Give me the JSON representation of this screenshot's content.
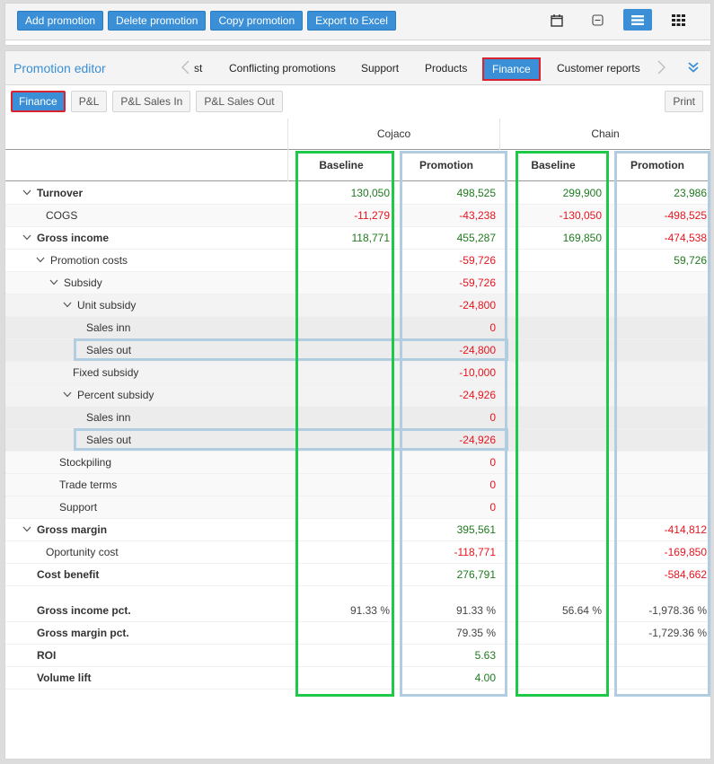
{
  "toolbar": {
    "buttons": [
      "Add promotion",
      "Delete promotion",
      "Copy promotion",
      "Export to Excel"
    ],
    "icons": [
      "calendar-icon",
      "collapse-box-icon",
      "list-view-icon",
      "grid-view-icon"
    ],
    "active_view": "list-view-icon"
  },
  "panel": {
    "title": "Promotion editor",
    "tabs": [
      {
        "label": "st",
        "active": false
      },
      {
        "label": "Conflicting promotions",
        "active": false
      },
      {
        "label": "Support",
        "active": false
      },
      {
        "label": "Products",
        "active": false
      },
      {
        "label": "Finance",
        "active": true
      },
      {
        "label": "Customer reports",
        "active": false
      }
    ],
    "subtabs": [
      {
        "label": "Finance",
        "active": true
      },
      {
        "label": "P&L",
        "active": false
      },
      {
        "label": "P&L Sales In",
        "active": false
      },
      {
        "label": "P&L Sales Out",
        "active": false
      }
    ],
    "print_label": "Print"
  },
  "table": {
    "groups": [
      "Cojaco",
      "Chain"
    ],
    "columns": [
      "Baseline",
      "Promotion",
      "Baseline",
      "Promotion"
    ],
    "rows": [
      {
        "label": "Turnover",
        "level": 0,
        "bold": true,
        "expand": true,
        "bg": 0,
        "values": [
          "130,050",
          "498,525",
          "299,900",
          "23,986"
        ],
        "signs": [
          "pos",
          "pos",
          "pos",
          "pos"
        ]
      },
      {
        "label": "COGS",
        "level": 1,
        "bold": false,
        "expand": false,
        "bg": 1,
        "values": [
          "-11,279",
          "-43,238",
          "-130,050",
          "-498,525"
        ],
        "signs": [
          "neg",
          "neg",
          "neg",
          "neg"
        ]
      },
      {
        "label": "Gross income",
        "level": 0,
        "bold": true,
        "expand": true,
        "bg": 0,
        "values": [
          "118,771",
          "455,287",
          "169,850",
          "-474,538"
        ],
        "signs": [
          "pos",
          "pos",
          "pos",
          "neg"
        ]
      },
      {
        "label": "Promotion costs",
        "level": 1,
        "bold": false,
        "expand": true,
        "bg": 0,
        "values": [
          "",
          "-59,726",
          "",
          "59,726"
        ],
        "signs": [
          "",
          "neg",
          "",
          "pos"
        ]
      },
      {
        "label": "Subsidy",
        "level": 2,
        "bold": false,
        "expand": true,
        "bg": 1,
        "values": [
          "",
          "-59,726",
          "",
          ""
        ],
        "signs": [
          "",
          "neg",
          "",
          ""
        ]
      },
      {
        "label": "Unit subsidy",
        "level": 3,
        "bold": false,
        "expand": true,
        "bg": 2,
        "values": [
          "",
          "-24,800",
          "",
          ""
        ],
        "signs": [
          "",
          "neg",
          "",
          ""
        ]
      },
      {
        "label": "Sales inn",
        "level": 4,
        "bold": false,
        "expand": false,
        "bg": 3,
        "values": [
          "",
          "0",
          "",
          ""
        ],
        "signs": [
          "",
          "neg",
          "",
          ""
        ]
      },
      {
        "label": "Sales out",
        "level": 4,
        "bold": false,
        "expand": false,
        "bg": 3,
        "highlight": true,
        "values": [
          "",
          "-24,800",
          "",
          ""
        ],
        "signs": [
          "",
          "neg",
          "",
          ""
        ]
      },
      {
        "label": "Fixed subsidy",
        "level": 3,
        "bold": false,
        "expand": false,
        "bg": 2,
        "values": [
          "",
          "-10,000",
          "",
          ""
        ],
        "signs": [
          "",
          "neg",
          "",
          ""
        ]
      },
      {
        "label": "Percent subsidy",
        "level": 3,
        "bold": false,
        "expand": true,
        "bg": 2,
        "values": [
          "",
          "-24,926",
          "",
          ""
        ],
        "signs": [
          "",
          "neg",
          "",
          ""
        ]
      },
      {
        "label": "Sales inn",
        "level": 4,
        "bold": false,
        "expand": false,
        "bg": 3,
        "values": [
          "",
          "0",
          "",
          ""
        ],
        "signs": [
          "",
          "neg",
          "",
          ""
        ]
      },
      {
        "label": "Sales out",
        "level": 4,
        "bold": false,
        "expand": false,
        "bg": 3,
        "highlight": true,
        "values": [
          "",
          "-24,926",
          "",
          ""
        ],
        "signs": [
          "",
          "neg",
          "",
          ""
        ]
      },
      {
        "label": "Stockpiling",
        "level": 2,
        "bold": false,
        "expand": false,
        "bg": 1,
        "values": [
          "",
          "0",
          "",
          ""
        ],
        "signs": [
          "",
          "neg",
          "",
          ""
        ]
      },
      {
        "label": "Trade terms",
        "level": 2,
        "bold": false,
        "expand": false,
        "bg": 1,
        "values": [
          "",
          "0",
          "",
          ""
        ],
        "signs": [
          "",
          "neg",
          "",
          ""
        ]
      },
      {
        "label": "Support",
        "level": 2,
        "bold": false,
        "expand": false,
        "bg": 1,
        "values": [
          "",
          "0",
          "",
          ""
        ],
        "signs": [
          "",
          "neg",
          "",
          ""
        ]
      },
      {
        "label": "Gross margin",
        "level": 0,
        "bold": true,
        "expand": true,
        "bg": 0,
        "values": [
          "",
          "395,561",
          "",
          "-414,812"
        ],
        "signs": [
          "",
          "pos",
          "",
          "neg"
        ]
      },
      {
        "label": "Oportunity cost",
        "level": 1,
        "bold": false,
        "expand": false,
        "bg": 0,
        "values": [
          "",
          "-118,771",
          "",
          "-169,850"
        ],
        "signs": [
          "",
          "neg",
          "",
          "neg"
        ]
      },
      {
        "label": "Cost benefit",
        "level": 0,
        "bold": true,
        "expand": false,
        "bg": 0,
        "values": [
          "",
          "276,791",
          "",
          "-584,662"
        ],
        "signs": [
          "",
          "pos",
          "",
          "neg"
        ]
      },
      {
        "spacer": true
      },
      {
        "label": "Gross income pct.",
        "level": 0,
        "bold": true,
        "expand": false,
        "bg": 0,
        "values": [
          "91.33 %",
          "91.33 %",
          "56.64 %",
          "-1,978.36 %"
        ],
        "signs": [
          "neu",
          "neu",
          "neu",
          "neu"
        ]
      },
      {
        "label": "Gross margin pct.",
        "level": 0,
        "bold": true,
        "expand": false,
        "bg": 0,
        "values": [
          "",
          "79.35 %",
          "",
          "-1,729.36 %"
        ],
        "signs": [
          "",
          "neu",
          "",
          "neu"
        ]
      },
      {
        "label": "ROI",
        "level": 0,
        "bold": true,
        "expand": false,
        "bg": 0,
        "values": [
          "",
          "5.63",
          "",
          ""
        ],
        "signs": [
          "",
          "pos",
          "",
          ""
        ]
      },
      {
        "label": "Volume lift",
        "level": 0,
        "bold": true,
        "expand": false,
        "bg": 0,
        "values": [
          "",
          "4.00",
          "",
          ""
        ],
        "signs": [
          "",
          "pos",
          "",
          ""
        ]
      }
    ]
  },
  "colors": {
    "accent": "#3a8fd6",
    "active_outline": "#d9232e",
    "positive": "#1f7a1f",
    "negative": "#e8141e",
    "highlight_green": "#1ec94a",
    "highlight_blue": "#b3cde0"
  }
}
